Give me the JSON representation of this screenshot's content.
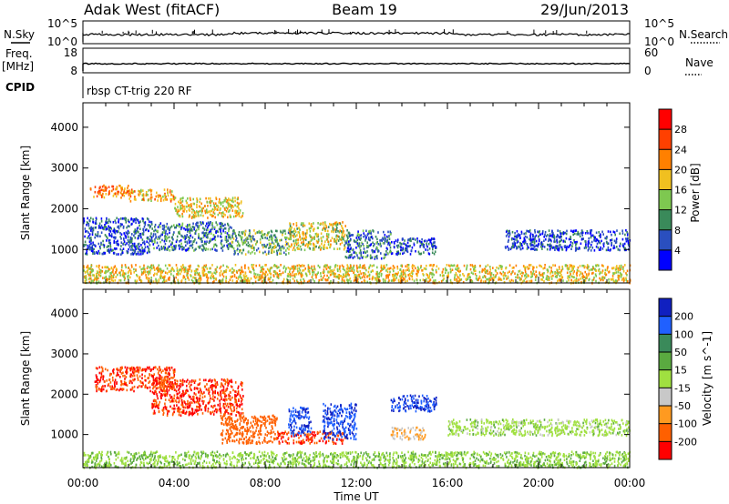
{
  "header": {
    "site": "Adak West (fitACF)",
    "beam": "Beam 19",
    "date": "29/Jun/2013"
  },
  "nsky_panel": {
    "left_label": "N.Sky",
    "right_label": "N.Search",
    "left_ticks": [
      "10^5",
      "10^0"
    ],
    "right_ticks": [
      "10^5",
      "10^0"
    ]
  },
  "freq_panel": {
    "left_label_1": "Freq.",
    "left_label_2": "[MHz]",
    "right_label": "Nave",
    "left_ticks": [
      18,
      8
    ],
    "right_ticks": [
      60,
      0
    ]
  },
  "cpid_panel": {
    "label": "CPID",
    "mode_text": "rbsp CT-trig 220 RF"
  },
  "x_axis": {
    "label": "Time UT",
    "ticks": [
      "00:00",
      "04:00",
      "08:00",
      "12:00",
      "16:00",
      "20:00",
      "00:00"
    ]
  },
  "chart_data": [
    {
      "type": "heatmap",
      "name": "Power",
      "ylabel": "Slant Range [km]",
      "xlim_hours": [
        0,
        24
      ],
      "ylim_km": [
        180,
        4600
      ],
      "y_ticks": [
        1000,
        2000,
        3000,
        4000
      ],
      "colorbar": {
        "label": "Power [dB]",
        "tick_labels": [
          "4",
          "8",
          "12",
          "16",
          "20",
          "24",
          "28"
        ],
        "colors": [
          "#0000ff",
          "#2a4fbf",
          "#3a8a5a",
          "#7ec850",
          "#f0c020",
          "#ff8000",
          "#ff4000",
          "#ff0000"
        ]
      },
      "echo_regions": [
        {
          "t0": 0.3,
          "t1": 2.0,
          "r0": 2300,
          "r1": 2600,
          "level": 22
        },
        {
          "t0": 2.0,
          "t1": 4.0,
          "r0": 2200,
          "r1": 2500,
          "level": 20
        },
        {
          "t0": 4.0,
          "t1": 7.0,
          "r0": 1800,
          "r1": 2300,
          "level": 18
        },
        {
          "t0": 0.0,
          "t1": 3.0,
          "r0": 900,
          "r1": 1800,
          "level": 6
        },
        {
          "t0": 3.0,
          "t1": 6.5,
          "r0": 1000,
          "r1": 1700,
          "level": 8
        },
        {
          "t0": 6.5,
          "t1": 9.0,
          "r0": 900,
          "r1": 1500,
          "level": 12
        },
        {
          "t0": 9.0,
          "t1": 11.5,
          "r0": 1000,
          "r1": 1700,
          "level": 16
        },
        {
          "t0": 11.5,
          "t1": 13.5,
          "r0": 800,
          "r1": 1500,
          "level": 8
        },
        {
          "t0": 13.5,
          "t1": 15.5,
          "r0": 900,
          "r1": 1300,
          "level": 6
        },
        {
          "t0": 18.5,
          "t1": 24.0,
          "r0": 1000,
          "r1": 1500,
          "level": 5
        },
        {
          "t0": 0.0,
          "t1": 24.0,
          "r0": 200,
          "r1": 650,
          "level": 18
        }
      ]
    },
    {
      "type": "heatmap",
      "name": "Velocity",
      "ylabel": "Slant Range [km]",
      "xlim_hours": [
        0,
        24
      ],
      "ylim_km": [
        180,
        4600
      ],
      "y_ticks": [
        1000,
        2000,
        3000,
        4000
      ],
      "colorbar": {
        "label": "Velocity [m s^-1]",
        "tick_labels": [
          "200",
          "100",
          "50",
          "15",
          "-15",
          "-50",
          "-100",
          "-200"
        ],
        "colors": [
          "#1020c0",
          "#2060ff",
          "#3a8a5a",
          "#5aaa40",
          "#a0e040",
          "#c8c8c8",
          "#ff9a20",
          "#ff6000",
          "#ff0000"
        ]
      },
      "echo_regions": [
        {
          "t0": 0.5,
          "t1": 4.0,
          "r0": 2100,
          "r1": 2700,
          "level": -200
        },
        {
          "t0": 3.0,
          "t1": 7.0,
          "r0": 1500,
          "r1": 2400,
          "level": -200
        },
        {
          "t0": 6.0,
          "t1": 8.5,
          "r0": 800,
          "r1": 1500,
          "level": -180
        },
        {
          "t0": 8.5,
          "t1": 11.5,
          "r0": 800,
          "r1": 1100,
          "level": -200
        },
        {
          "t0": 9.0,
          "t1": 10.0,
          "r0": 1000,
          "r1": 1700,
          "level": 200
        },
        {
          "t0": 10.5,
          "t1": 12.0,
          "r0": 900,
          "r1": 1800,
          "level": 200
        },
        {
          "t0": 13.5,
          "t1": 15.5,
          "r0": 1600,
          "r1": 2000,
          "level": 200
        },
        {
          "t0": 13.5,
          "t1": 15.0,
          "r0": 900,
          "r1": 1200,
          "level": -50
        },
        {
          "t0": 16.0,
          "t1": 24.0,
          "r0": 1000,
          "r1": 1400,
          "level": 0
        },
        {
          "t0": 0.0,
          "t1": 24.0,
          "r0": 200,
          "r1": 600,
          "level": 10
        }
      ]
    }
  ]
}
